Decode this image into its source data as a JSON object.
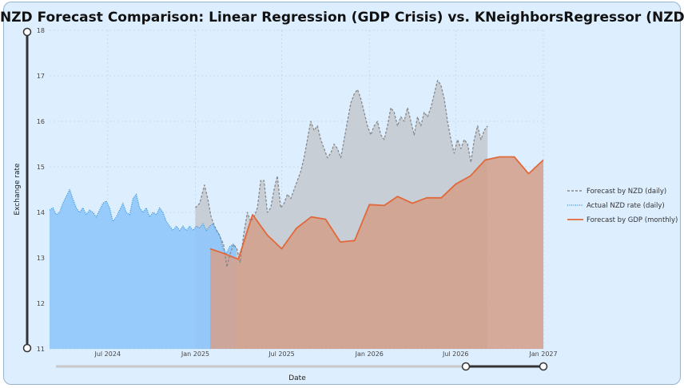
{
  "title": "NZD Forecast Comparison: Linear Regression (GDP Crisis) vs. KNeighborsRegressor (NZD)",
  "chart_data": {
    "type": "area",
    "title": "NZD Forecast Comparison: Linear Regression (GDP Crisis) vs. KNeighborsRegressor (NZD)",
    "xlabel": "Date",
    "ylabel": "Exchange rate",
    "x_range": [
      "2024-03-01",
      "2027-01-01"
    ],
    "ylim": [
      11,
      18
    ],
    "y_ticks": [
      11,
      12,
      13,
      14,
      15,
      16,
      17,
      18
    ],
    "x_ticks": [
      {
        "date": "2024-07-01",
        "label": "Jul 2024"
      },
      {
        "date": "2025-01-01",
        "label": "Jan 2025"
      },
      {
        "date": "2025-07-01",
        "label": "Jul 2025"
      },
      {
        "date": "2026-01-01",
        "label": "Jan 2026"
      },
      {
        "date": "2026-07-01",
        "label": "Jul 2026"
      },
      {
        "date": "2027-01-01",
        "label": "Jan 2027"
      }
    ],
    "grid": true,
    "legend_position": "right",
    "series": [
      {
        "name": "Forecast by NZD (daily)",
        "style": "dashed",
        "color": "#888888",
        "fill": "#c4cbd3",
        "points": [
          [
            "2025-01-01",
            14.1
          ],
          [
            "2025-01-10",
            14.2
          ],
          [
            "2025-01-20",
            14.6
          ],
          [
            "2025-01-27",
            14.3
          ],
          [
            "2025-02-03",
            13.9
          ],
          [
            "2025-02-10",
            13.7
          ],
          [
            "2025-02-20",
            13.5
          ],
          [
            "2025-03-01",
            13.3
          ],
          [
            "2025-03-08",
            12.8
          ],
          [
            "2025-03-15",
            13.1
          ],
          [
            "2025-03-22",
            13.3
          ],
          [
            "2025-03-29",
            13.2
          ],
          [
            "2025-04-05",
            12.9
          ],
          [
            "2025-04-12",
            13.5
          ],
          [
            "2025-04-20",
            14.0
          ],
          [
            "2025-04-27",
            13.8
          ],
          [
            "2025-05-04",
            13.9
          ],
          [
            "2025-05-11",
            14.1
          ],
          [
            "2025-05-18",
            14.7
          ],
          [
            "2025-05-25",
            14.7
          ],
          [
            "2025-06-01",
            14.0
          ],
          [
            "2025-06-08",
            14.1
          ],
          [
            "2025-06-15",
            14.5
          ],
          [
            "2025-06-22",
            14.8
          ],
          [
            "2025-06-29",
            14.1
          ],
          [
            "2025-07-06",
            14.2
          ],
          [
            "2025-07-13",
            14.4
          ],
          [
            "2025-07-20",
            14.3
          ],
          [
            "2025-07-27",
            14.5
          ],
          [
            "2025-08-03",
            14.7
          ],
          [
            "2025-08-10",
            14.9
          ],
          [
            "2025-08-17",
            15.2
          ],
          [
            "2025-08-24",
            15.6
          ],
          [
            "2025-08-31",
            16.0
          ],
          [
            "2025-09-07",
            15.8
          ],
          [
            "2025-09-14",
            15.9
          ],
          [
            "2025-09-21",
            15.6
          ],
          [
            "2025-09-28",
            15.4
          ],
          [
            "2025-10-05",
            15.2
          ],
          [
            "2025-10-12",
            15.3
          ],
          [
            "2025-10-19",
            15.5
          ],
          [
            "2025-10-26",
            15.4
          ],
          [
            "2025-11-02",
            15.2
          ],
          [
            "2025-11-09",
            15.6
          ],
          [
            "2025-11-16",
            16.0
          ],
          [
            "2025-11-23",
            16.4
          ],
          [
            "2025-11-30",
            16.6
          ],
          [
            "2025-12-07",
            16.7
          ],
          [
            "2025-12-14",
            16.5
          ],
          [
            "2025-12-21",
            16.2
          ],
          [
            "2025-12-28",
            15.9
          ],
          [
            "2026-01-04",
            15.7
          ],
          [
            "2026-01-11",
            15.9
          ],
          [
            "2026-01-18",
            16.0
          ],
          [
            "2026-01-25",
            15.7
          ],
          [
            "2026-02-01",
            15.6
          ],
          [
            "2026-02-08",
            15.9
          ],
          [
            "2026-02-15",
            16.3
          ],
          [
            "2026-02-22",
            16.2
          ],
          [
            "2026-03-01",
            15.9
          ],
          [
            "2026-03-08",
            16.1
          ],
          [
            "2026-03-15",
            16.0
          ],
          [
            "2026-03-22",
            16.3
          ],
          [
            "2026-03-29",
            16.0
          ],
          [
            "2026-04-05",
            15.7
          ],
          [
            "2026-04-12",
            16.1
          ],
          [
            "2026-04-19",
            15.9
          ],
          [
            "2026-04-26",
            16.2
          ],
          [
            "2026-05-03",
            16.1
          ],
          [
            "2026-05-10",
            16.3
          ],
          [
            "2026-05-17",
            16.6
          ],
          [
            "2026-05-24",
            16.9
          ],
          [
            "2026-05-31",
            16.8
          ],
          [
            "2026-06-07",
            16.5
          ],
          [
            "2026-06-14",
            16.0
          ],
          [
            "2026-06-21",
            15.6
          ],
          [
            "2026-06-28",
            15.3
          ],
          [
            "2026-07-05",
            15.6
          ],
          [
            "2026-07-12",
            15.4
          ],
          [
            "2026-07-19",
            15.6
          ],
          [
            "2026-07-26",
            15.5
          ],
          [
            "2026-08-02",
            15.1
          ],
          [
            "2026-08-09",
            15.6
          ],
          [
            "2026-08-16",
            15.9
          ],
          [
            "2026-08-23",
            15.6
          ],
          [
            "2026-08-30",
            15.8
          ],
          [
            "2026-09-06",
            15.9
          ]
        ]
      },
      {
        "name": "Actual NZD rate (daily)",
        "style": "dotted",
        "color": "#3a9ad9",
        "fill": "#90c8fb",
        "points": [
          [
            "2024-03-01",
            14.05
          ],
          [
            "2024-03-08",
            14.1
          ],
          [
            "2024-03-15",
            13.95
          ],
          [
            "2024-03-22",
            14.0
          ],
          [
            "2024-03-29",
            14.2
          ],
          [
            "2024-04-05",
            14.35
          ],
          [
            "2024-04-12",
            14.5
          ],
          [
            "2024-04-19",
            14.3
          ],
          [
            "2024-04-26",
            14.1
          ],
          [
            "2024-05-03",
            14.0
          ],
          [
            "2024-05-10",
            14.1
          ],
          [
            "2024-05-17",
            13.95
          ],
          [
            "2024-05-24",
            14.05
          ],
          [
            "2024-05-31",
            14.0
          ],
          [
            "2024-06-07",
            13.9
          ],
          [
            "2024-06-14",
            14.05
          ],
          [
            "2024-06-21",
            14.2
          ],
          [
            "2024-06-28",
            14.25
          ],
          [
            "2024-07-05",
            14.1
          ],
          [
            "2024-07-12",
            13.8
          ],
          [
            "2024-07-19",
            13.9
          ],
          [
            "2024-07-26",
            14.05
          ],
          [
            "2024-08-02",
            14.2
          ],
          [
            "2024-08-09",
            14.0
          ],
          [
            "2024-08-16",
            13.95
          ],
          [
            "2024-08-23",
            14.3
          ],
          [
            "2024-08-30",
            14.4
          ],
          [
            "2024-09-06",
            14.1
          ],
          [
            "2024-09-13",
            14.0
          ],
          [
            "2024-09-20",
            14.1
          ],
          [
            "2024-09-27",
            13.9
          ],
          [
            "2024-10-04",
            14.0
          ],
          [
            "2024-10-11",
            13.95
          ],
          [
            "2024-10-18",
            14.1
          ],
          [
            "2024-10-25",
            14.0
          ],
          [
            "2024-11-01",
            13.8
          ],
          [
            "2024-11-08",
            13.7
          ],
          [
            "2024-11-15",
            13.6
          ],
          [
            "2024-11-22",
            13.7
          ],
          [
            "2024-11-29",
            13.6
          ],
          [
            "2024-12-06",
            13.7
          ],
          [
            "2024-12-13",
            13.6
          ],
          [
            "2024-12-20",
            13.7
          ],
          [
            "2024-12-27",
            13.6
          ],
          [
            "2025-01-03",
            13.7
          ],
          [
            "2025-01-10",
            13.65
          ],
          [
            "2025-01-17",
            13.75
          ],
          [
            "2025-01-24",
            13.6
          ],
          [
            "2025-01-31",
            13.7
          ],
          [
            "2025-02-07",
            13.75
          ],
          [
            "2025-02-14",
            13.6
          ],
          [
            "2025-02-21",
            13.5
          ],
          [
            "2025-02-28",
            13.2
          ],
          [
            "2025-03-07",
            13.1
          ],
          [
            "2025-03-14",
            13.25
          ],
          [
            "2025-03-21",
            13.3
          ],
          [
            "2025-03-28",
            13.2
          ]
        ]
      },
      {
        "name": "Forecast by GDP (monthly)",
        "style": "solid",
        "color": "#e2683a",
        "fill": "#d4a08c",
        "points": [
          [
            "2025-02-01",
            13.2
          ],
          [
            "2025-03-01",
            13.1
          ],
          [
            "2025-04-01",
            12.97
          ],
          [
            "2025-05-01",
            13.95
          ],
          [
            "2025-06-01",
            13.5
          ],
          [
            "2025-07-01",
            13.2
          ],
          [
            "2025-08-01",
            13.65
          ],
          [
            "2025-09-01",
            13.9
          ],
          [
            "2025-10-01",
            13.85
          ],
          [
            "2025-11-01",
            13.35
          ],
          [
            "2025-12-01",
            13.38
          ],
          [
            "2026-01-01",
            14.17
          ],
          [
            "2026-02-01",
            14.15
          ],
          [
            "2026-03-01",
            14.35
          ],
          [
            "2026-04-01",
            14.2
          ],
          [
            "2026-05-01",
            14.32
          ],
          [
            "2026-06-01",
            14.32
          ],
          [
            "2026-07-01",
            14.62
          ],
          [
            "2026-08-01",
            14.8
          ],
          [
            "2026-09-01",
            15.15
          ],
          [
            "2026-10-01",
            15.22
          ],
          [
            "2026-11-01",
            15.22
          ],
          [
            "2026-12-01",
            14.85
          ],
          [
            "2027-01-01",
            15.15
          ]
        ]
      }
    ]
  },
  "colors": {
    "background": "#ddeeff",
    "accent_orange": "#e2683a",
    "accent_blue": "#3a9ad9",
    "accent_gray": "#888888"
  }
}
